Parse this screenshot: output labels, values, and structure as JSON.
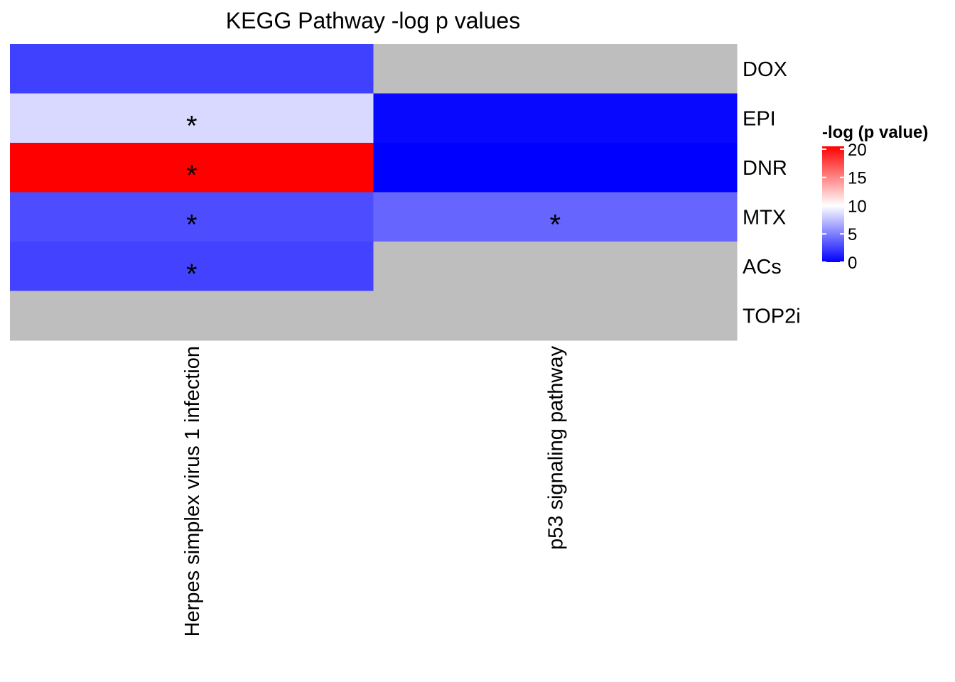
{
  "chart_data": {
    "type": "heatmap",
    "title": "KEGG Pathway -log p values",
    "x_categories": [
      "Herpes simplex virus 1 infection",
      "p53 signaling pathway"
    ],
    "y_categories": [
      "DOX",
      "EPI",
      "DNR",
      "MTX",
      "ACs",
      "TOP2i"
    ],
    "values": [
      [
        2.5,
        null
      ],
      [
        8.5,
        0.3
      ],
      [
        20.5,
        0.0
      ],
      [
        3.0,
        4.0
      ],
      [
        2.6,
        null
      ],
      [
        null,
        null
      ]
    ],
    "significance_marker": "*",
    "significant": [
      [
        false,
        false
      ],
      [
        true,
        false
      ],
      [
        true,
        false
      ],
      [
        true,
        true
      ],
      [
        true,
        false
      ],
      [
        false,
        false
      ]
    ],
    "legend": {
      "title": "-log (p value)",
      "ticks": [
        0,
        5,
        10,
        15,
        20
      ],
      "range": [
        0,
        20.5
      ],
      "colors": {
        "low": "#0000ff",
        "mid": "#ffffff",
        "high": "#ff0000"
      },
      "midpoint": 10,
      "position": "right"
    },
    "na_color": "#bebebe"
  }
}
